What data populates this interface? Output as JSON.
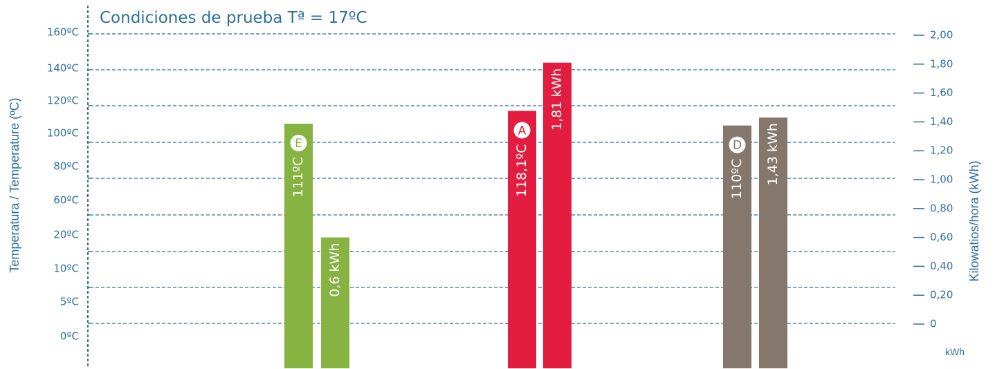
{
  "chart_data": {
    "type": "bar",
    "title": "Condiciones de prueba Tª = 17ºC",
    "ylabel_left": "Temperatura / Temperature (ºC)",
    "ylabel_right": "Kilowatios/hora  (kWh)",
    "right_unit": "kWh",
    "left_ticks": [
      "160ºC",
      "140ºC",
      "120ºC",
      "100ºC",
      "80ºC",
      "60ºC",
      "20ºC",
      "10ºC",
      "5ºC",
      "0ºC"
    ],
    "right_ticks": [
      "2,00",
      "1,80",
      "1,60",
      "1,40",
      "1,20",
      "1,00",
      "0,80",
      "0,60",
      "0,40",
      "0,20",
      "0"
    ],
    "ylim_left": [
      0,
      160
    ],
    "ylim_right": [
      0,
      2.0
    ],
    "grid": true,
    "groups": [
      {
        "badge": "E",
        "color": "#86b342",
        "temperature": {
          "value": 111,
          "label": "111ºC"
        },
        "energy": {
          "value": 0.6,
          "label": "0,6 kWh"
        }
      },
      {
        "badge": "A",
        "color": "#e21d3f",
        "temperature": {
          "value": 118.1,
          "label": "118,1ºC"
        },
        "energy": {
          "value": 1.81,
          "label": "1,81 kWh"
        }
      },
      {
        "badge": "D",
        "color": "#85776c",
        "temperature": {
          "value": 110,
          "label": "110ºC"
        },
        "energy": {
          "value": 1.43,
          "label": "1,43 kWh"
        }
      }
    ]
  },
  "colors": {
    "axis": "#2f6f9e",
    "grid": "#2f6f9e",
    "background": "#ffffff"
  }
}
